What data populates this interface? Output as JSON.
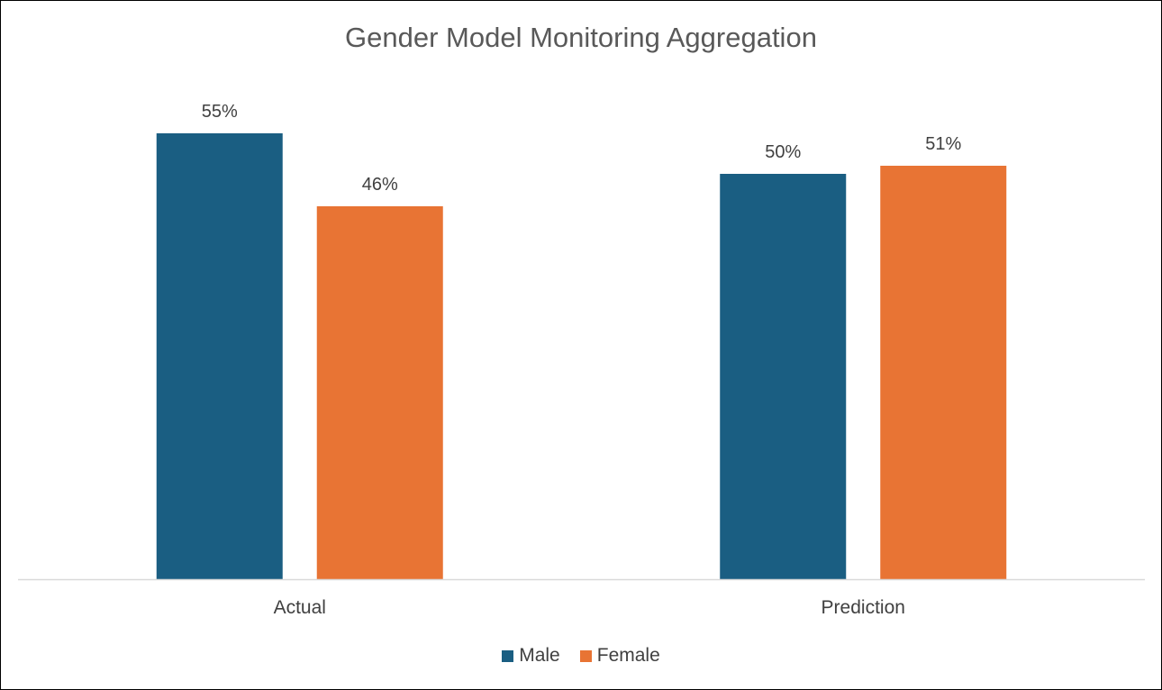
{
  "chart_data": {
    "type": "bar",
    "title": "Gender Model Monitoring Aggregation",
    "categories": [
      "Actual",
      "Prediction"
    ],
    "series": [
      {
        "name": "Male",
        "values": [
          55,
          50
        ],
        "labels": [
          "55%",
          "50%"
        ],
        "color": "#1a5e82"
      },
      {
        "name": "Female",
        "values": [
          46,
          51
        ],
        "labels": [
          "46%",
          "51%"
        ],
        "color": "#e87434"
      }
    ],
    "ylim": [
      0,
      60
    ],
    "value_format": "percent",
    "grid": false,
    "show_y_axis": false,
    "legend_position": "bottom"
  }
}
